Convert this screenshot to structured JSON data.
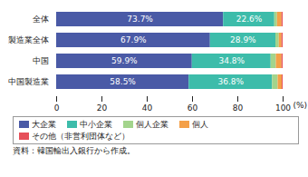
{
  "chart_data": {
    "type": "bar",
    "orientation": "horizontal",
    "stacked": true,
    "data_labels": true,
    "categories": [
      "全体",
      "製造業全体",
      "中国",
      "中国製造業"
    ],
    "series": [
      {
        "name": "大企業",
        "color": "#4a5aa6",
        "values": [
          73.7,
          67.9,
          59.9,
          58.5
        ],
        "value_labels": [
          "73.7%",
          "67.9%",
          "59.9%",
          "58.5%"
        ]
      },
      {
        "name": "中小企業",
        "color": "#3dbcaa",
        "values": [
          22.6,
          28.9,
          34.8,
          36.8
        ],
        "value_labels": [
          "22.6%",
          "28.9%",
          "34.8%",
          "36.8%"
        ]
      },
      {
        "name": "個人企業",
        "color": "#a3d48c",
        "values": [
          1.2,
          1.5,
          2.3,
          2.5
        ]
      },
      {
        "name": "個人",
        "color": "#f4a048",
        "values": [
          2.0,
          1.2,
          2.5,
          1.8
        ]
      },
      {
        "name": "その他（非営利団体など）",
        "color": "#e6505a",
        "values": [
          0.5,
          0.5,
          0.5,
          0.4
        ]
      }
    ],
    "x_label": "(%)",
    "xlim": [
      0,
      100
    ],
    "xticks": [
      0,
      20,
      40,
      60,
      80,
      100
    ],
    "legend": "bottom",
    "caption": "資料：韓国輸出入銀行から作成。"
  }
}
